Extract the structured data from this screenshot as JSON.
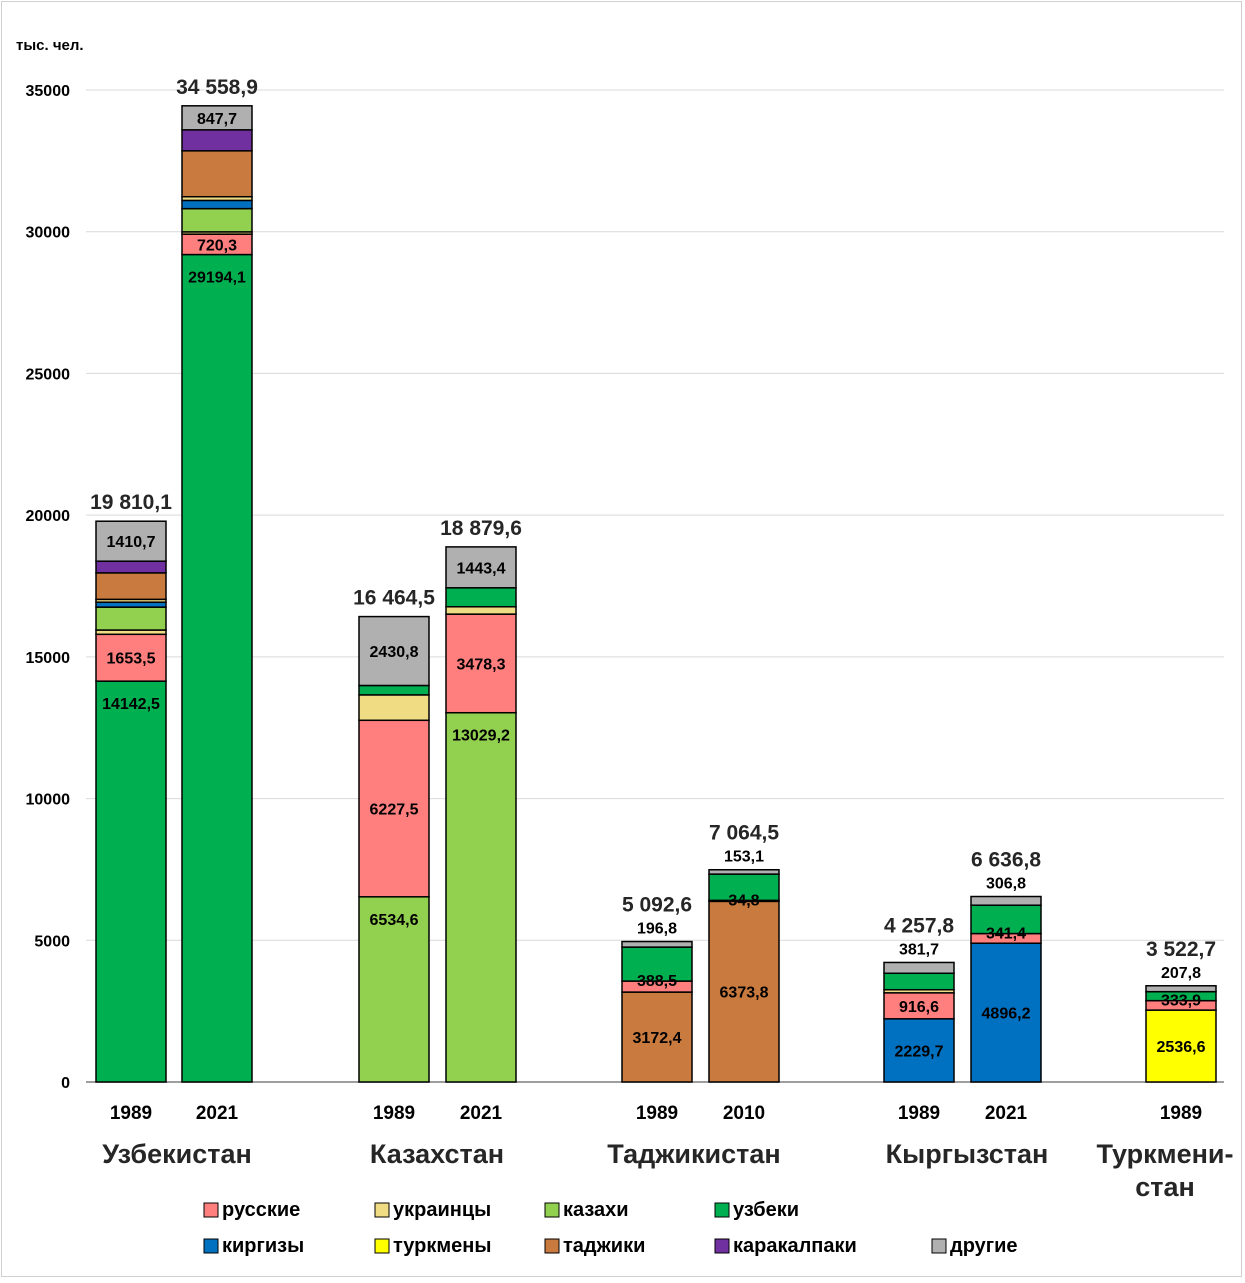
{
  "chart_data": {
    "type": "bar",
    "stacked": true,
    "unit_label": "тыс. чел.",
    "ylim": [
      0,
      35000
    ],
    "yticks": [
      0,
      5000,
      10000,
      15000,
      20000,
      25000,
      30000,
      35000
    ],
    "grid": true,
    "legend_position": "bottom",
    "colors": {
      "russians": "#ff7f7f",
      "ukrainians": "#f0dc82",
      "kazakhs": "#92d050",
      "uzbeks": "#00b050",
      "kyrgyz": "#0070c0",
      "turkmens": "#ffff00",
      "tajiks": "#c87a3f",
      "karakalpaks": "#7030a0",
      "others": "#b0b0b0"
    },
    "legend": [
      {
        "key": "russians",
        "label": "русские"
      },
      {
        "key": "ukrainians",
        "label": "украинцы"
      },
      {
        "key": "kazakhs",
        "label": "казахи"
      },
      {
        "key": "uzbeks",
        "label": "узбеки"
      },
      {
        "key": "kyrgyz",
        "label": "киргизы"
      },
      {
        "key": "turkmens",
        "label": "туркмены"
      },
      {
        "key": "tajiks",
        "label": "таджики"
      },
      {
        "key": "karakalpaks",
        "label": "каракалпаки"
      },
      {
        "key": "others",
        "label": "другие"
      }
    ],
    "groups": [
      {
        "country": [
          "Узбекистан"
        ],
        "bars": [
          {
            "year": "1989",
            "total": 19810.1,
            "total_label": "19 810,1",
            "segments": [
              {
                "key": "uzbeks",
                "value": 14142.5,
                "label": "14142,5"
              },
              {
                "key": "russians",
                "value": 1653.5,
                "label": "1653,5"
              },
              {
                "key": "ukrainians",
                "value": 150
              },
              {
                "key": "kazakhs",
                "value": 808
              },
              {
                "key": "kyrgyz",
                "value": 175
              },
              {
                "key": "ukrainians",
                "value": 100
              },
              {
                "key": "tajiks",
                "value": 934
              },
              {
                "key": "karakalpaks",
                "value": 412
              },
              {
                "key": "others",
                "value": 1410.7,
                "label": "1410,7"
              }
            ]
          },
          {
            "year": "2021",
            "total": 34558.9,
            "total_label": "34 558,9",
            "segments": [
              {
                "key": "uzbeks",
                "value": 29194.1,
                "label": "29194,1"
              },
              {
                "key": "russians",
                "value": 720.3,
                "label": "720,3"
              },
              {
                "key": "ukrainians",
                "value": 80
              },
              {
                "key": "kazakhs",
                "value": 820
              },
              {
                "key": "kyrgyz",
                "value": 290
              },
              {
                "key": "ukrainians",
                "value": 130
              },
              {
                "key": "tajiks",
                "value": 1620
              },
              {
                "key": "karakalpaks",
                "value": 740
              },
              {
                "key": "others",
                "value": 847.7,
                "label": "847,7"
              }
            ]
          }
        ]
      },
      {
        "country": [
          "Казахстан"
        ],
        "bars": [
          {
            "year": "1989",
            "total": 16464.5,
            "total_label": "16 464,5",
            "segments": [
              {
                "key": "kazakhs",
                "value": 6534.6,
                "label": "6534,6"
              },
              {
                "key": "russians",
                "value": 6227.5,
                "label": "6227,5"
              },
              {
                "key": "ukrainians",
                "value": 896
              },
              {
                "key": "uzbeks",
                "value": 332
              },
              {
                "key": "others",
                "value": 2430.8,
                "label": "2430,8"
              }
            ]
          },
          {
            "year": "2021",
            "total": 18879.6,
            "total_label": "18 879,6",
            "segments": [
              {
                "key": "kazakhs",
                "value": 13029.2,
                "label": "13029,2"
              },
              {
                "key": "russians",
                "value": 3478.3,
                "label": "3478,3"
              },
              {
                "key": "ukrainians",
                "value": 260
              },
              {
                "key": "uzbeks",
                "value": 669
              },
              {
                "key": "others",
                "value": 1443.4,
                "label": "1443,4"
              }
            ]
          }
        ]
      },
      {
        "country": [
          "Таджикистан"
        ],
        "bars": [
          {
            "year": "1989",
            "total": 5092.6,
            "total_label": "5 092,6",
            "segments": [
              {
                "key": "tajiks",
                "value": 3172.4,
                "label": "3172,4"
              },
              {
                "key": "russians",
                "value": 388.5,
                "label": "388,5"
              },
              {
                "key": "uzbeks",
                "value": 1198
              },
              {
                "key": "others",
                "value": 196.8,
                "label": "196,8"
              }
            ]
          },
          {
            "year": "2010",
            "total": 7064.5,
            "total_label": "7 064,5",
            "segments": [
              {
                "key": "tajiks",
                "value": 6373.8,
                "label": "6373,8"
              },
              {
                "key": "russians",
                "value": 34.8,
                "label": "34,8"
              },
              {
                "key": "uzbeks",
                "value": 927
              },
              {
                "key": "others",
                "value": 153.1,
                "label": "153,1"
              }
            ]
          }
        ]
      },
      {
        "country": [
          "Кыргызстан"
        ],
        "bars": [
          {
            "year": "1989",
            "total": 4257.8,
            "total_label": "4 257,8",
            "segments": [
              {
                "key": "kyrgyz",
                "value": 2229.7,
                "label": "2229,7"
              },
              {
                "key": "russians",
                "value": 916.6,
                "label": "916,6"
              },
              {
                "key": "ukrainians",
                "value": 110
              },
              {
                "key": "uzbeks",
                "value": 580
              },
              {
                "key": "others",
                "value": 381.7,
                "label": "381,7"
              }
            ]
          },
          {
            "year": "2021",
            "total": 6636.8,
            "total_label": "6 636,8",
            "segments": [
              {
                "key": "kyrgyz",
                "value": 4896.2,
                "label": "4896,2"
              },
              {
                "key": "russians",
                "value": 341.4,
                "label": "341,4"
              },
              {
                "key": "uzbeks",
                "value": 1000
              },
              {
                "key": "others",
                "value": 306.8,
                "label": "306,8"
              }
            ]
          }
        ]
      },
      {
        "country": [
          "Туркмени-",
          "стан"
        ],
        "bars": [
          {
            "year": "1989",
            "total": 3522.7,
            "total_label": "3 522,7",
            "segments": [
              {
                "key": "turkmens",
                "value": 2536.6,
                "label": "2536,6"
              },
              {
                "key": "russians",
                "value": 333.9,
                "label": "333,9"
              },
              {
                "key": "uzbeks",
                "value": 317
              },
              {
                "key": "others",
                "value": 207.8,
                "label": "207,8"
              }
            ]
          }
        ]
      }
    ]
  }
}
